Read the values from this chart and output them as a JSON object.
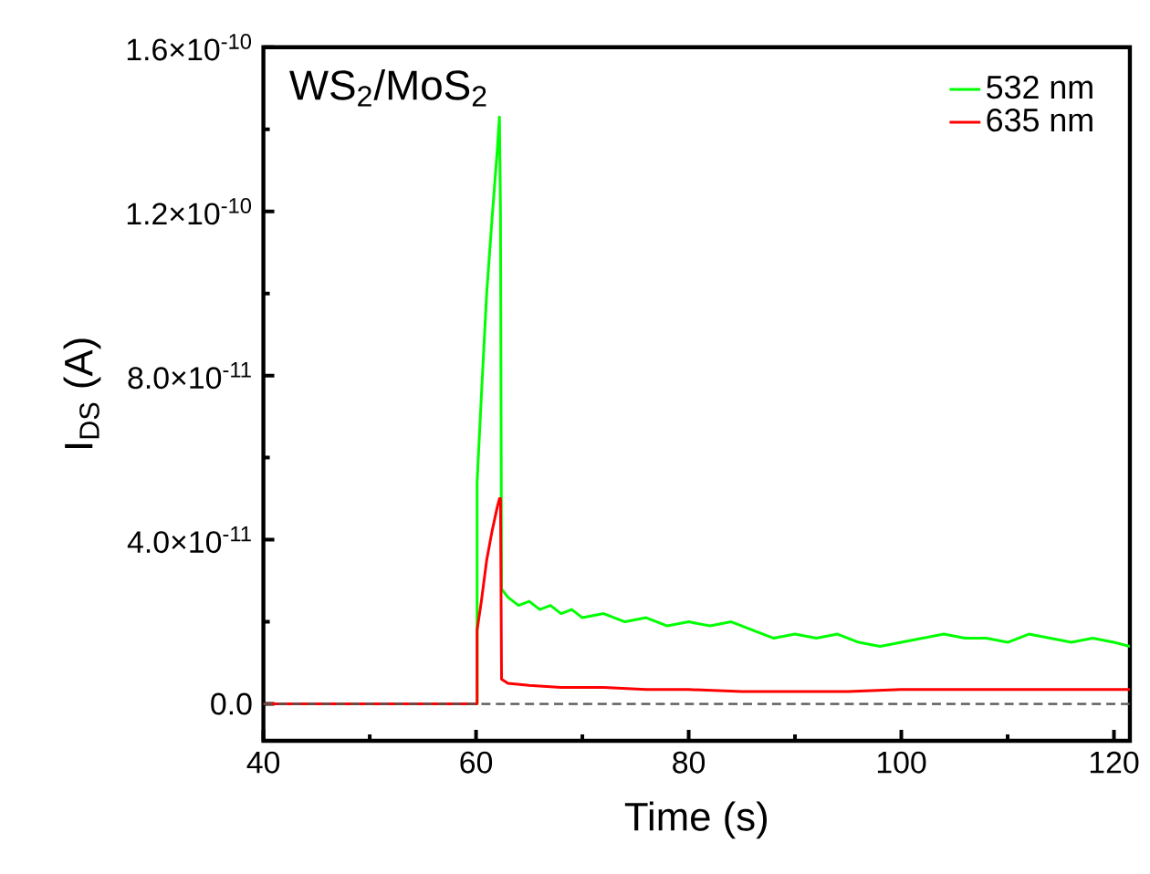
{
  "chart_data": {
    "type": "line",
    "title": "WS$_{2}$/MoS$_{2}$",
    "xlabel": "Time (s)",
    "ylabel": "I$_{DS}$ (A)",
    "xlim": [
      40,
      121.5
    ],
    "xticks": [
      40,
      60,
      80,
      100,
      120
    ],
    "ylim": [
      -9e-12,
      1.6e-10
    ],
    "yticks": [
      {
        "value": 0,
        "label": "0.0"
      },
      {
        "value": 4e-11,
        "label": "4.0×10$^{-11}$"
      },
      {
        "value": 8e-11,
        "label": "8.0×10$^{-11}$"
      },
      {
        "value": 1.2e-10,
        "label": "1.2×10$^{-10}$"
      },
      {
        "value": 1.6e-10,
        "label": "1.6×10$^{-10}$"
      }
    ],
    "grid": false,
    "legend": "top right",
    "marker": "none",
    "line_style": "solid",
    "ref_lines": [
      {
        "axis": "y",
        "value": 0,
        "color": "#555555",
        "line_style": "dashed"
      }
    ],
    "series": [
      {
        "name": "532 nm",
        "color": "#00ff00",
        "x": [
          40,
          59.9,
          60.1,
          60.1,
          60.5,
          61,
          61.5,
          62,
          62.2,
          62.3,
          62.4,
          63,
          64,
          65,
          66,
          67,
          68,
          69,
          70,
          72,
          74,
          76,
          78,
          80,
          82,
          84,
          86,
          88,
          90,
          92,
          94,
          96,
          98,
          100,
          102,
          104,
          106,
          108,
          110,
          112,
          114,
          116,
          118,
          120,
          121.5
        ],
        "values": [
          0,
          0,
          0,
          5.4e-11,
          7.5e-11,
          1e-10,
          1.18e-10,
          1.35e-10,
          1.43e-10,
          1.2e-10,
          2.8e-11,
          2.6e-11,
          2.4e-11,
          2.5e-11,
          2.3e-11,
          2.4e-11,
          2.2e-11,
          2.3e-11,
          2.1e-11,
          2.2e-11,
          2e-11,
          2.1e-11,
          1.9e-11,
          2e-11,
          1.9e-11,
          2e-11,
          1.8e-11,
          1.6e-11,
          1.7e-11,
          1.6e-11,
          1.7e-11,
          1.5e-11,
          1.4e-11,
          1.5e-11,
          1.6e-11,
          1.7e-11,
          1.6e-11,
          1.6e-11,
          1.5e-11,
          1.7e-11,
          1.6e-11,
          1.5e-11,
          1.6e-11,
          1.5e-11,
          1.4e-11
        ]
      },
      {
        "name": "635 nm",
        "color": "#ff0000",
        "x": [
          40,
          59.9,
          60.1,
          60.1,
          60.5,
          61,
          61.5,
          62,
          62.2,
          62.3,
          62.4,
          63,
          65,
          68,
          72,
          76,
          80,
          85,
          90,
          95,
          100,
          105,
          110,
          115,
          120,
          121.5
        ],
        "values": [
          0,
          0,
          0,
          1.8e-11,
          2.5e-11,
          3.5e-11,
          4.2e-11,
          4.8e-11,
          5e-11,
          5e-11,
          6e-12,
          5e-12,
          4.5e-12,
          4e-12,
          4e-12,
          3.5e-12,
          3.5e-12,
          3e-12,
          3e-12,
          3e-12,
          3.5e-12,
          3.5e-12,
          3.5e-12,
          3.5e-12,
          3.5e-12,
          3.5e-12
        ]
      }
    ]
  }
}
